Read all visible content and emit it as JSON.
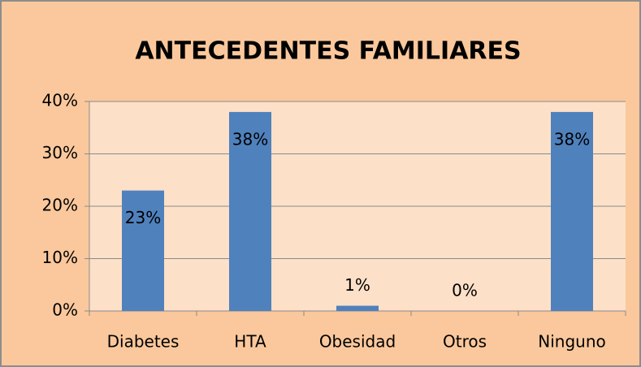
{
  "chart_data": {
    "type": "bar",
    "title": "ANTECEDENTES FAMILIARES",
    "categories": [
      "Diabetes",
      "HTA",
      "Obesidad",
      "Otros",
      "Ninguno"
    ],
    "values": [
      23,
      38,
      1,
      0,
      38
    ],
    "value_labels": [
      "23%",
      "38%",
      "1%",
      "0%",
      "38%"
    ],
    "color": "#4f81bd",
    "ylim": [
      0,
      40
    ],
    "yticks": [
      {
        "value": 0,
        "label": "0%"
      },
      {
        "value": 10,
        "label": "10%"
      },
      {
        "value": 20,
        "label": "20%"
      },
      {
        "value": 30,
        "label": "30%"
      },
      {
        "value": 40,
        "label": "40%"
      }
    ],
    "grid": true
  }
}
